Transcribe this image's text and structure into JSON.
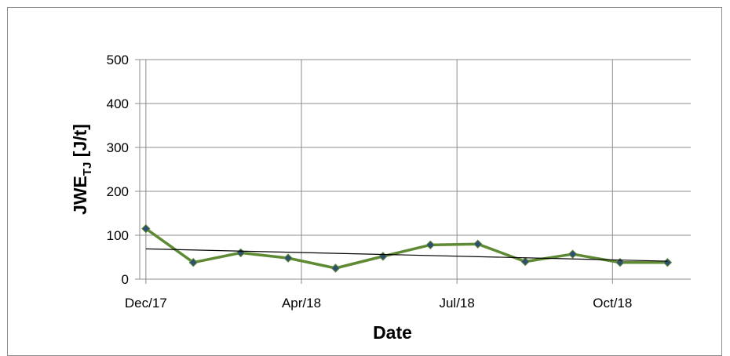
{
  "chart_data": {
    "type": "line",
    "x_label": "Date",
    "y_label": [
      "JWE",
      "TJ",
      " [J/t]"
    ],
    "x": [
      0,
      1,
      2,
      3,
      4,
      5,
      6,
      7,
      8,
      9,
      10,
      11
    ],
    "series": [
      {
        "color": "#5e8a34",
        "marker_color": "#2f4f6f",
        "values": [
          115,
          38,
          60,
          48,
          25,
          52,
          78,
          80,
          40,
          57,
          38,
          38
        ]
      }
    ],
    "trendline": {
      "color": "#000000",
      "x": [
        0,
        11
      ],
      "values": [
        69,
        41
      ]
    },
    "xlim": [
      -0.13,
      11.49
    ],
    "xticks": [
      {
        "value": 0,
        "label": "Dec/17"
      },
      {
        "value": 3.28,
        "label": "Apr/18"
      },
      {
        "value": 6.56,
        "label": "Jul/18"
      },
      {
        "value": 9.84,
        "label": "Oct/18"
      }
    ],
    "ylim": [
      0,
      500
    ],
    "yticks": [
      0,
      100,
      200,
      300,
      400,
      500
    ],
    "grid": true
  }
}
